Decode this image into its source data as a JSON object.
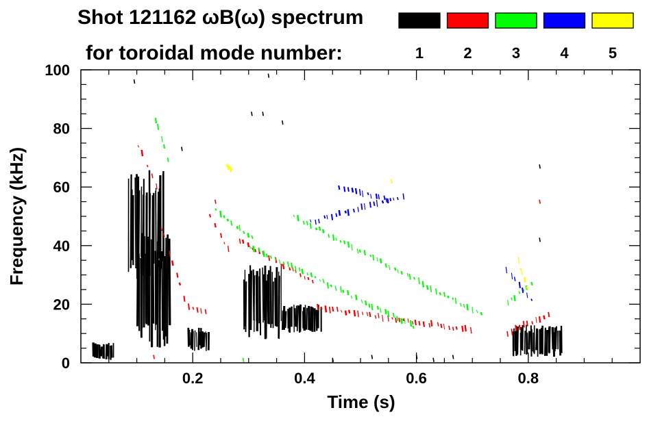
{
  "chart_data": {
    "type": "heatmap",
    "title_line1": "Shot 121162 ωB(ω) spectrum",
    "title_line2": "for toroidal mode number:",
    "xlabel": "Time (s)",
    "ylabel": "Frequency (kHz)",
    "xlim": [
      0.0,
      1.0
    ],
    "ylim": [
      0,
      100
    ],
    "xticks": [
      0.2,
      0.4,
      0.6,
      0.8
    ],
    "xtick_labels": [
      "0.2",
      "0.4",
      "0.6",
      "0.8"
    ],
    "yticks": [
      0,
      20,
      40,
      60,
      80,
      100
    ],
    "ytick_labels": [
      "0",
      "20",
      "40",
      "60",
      "80",
      "100"
    ],
    "legend": [
      {
        "label": "1",
        "color": "#000000"
      },
      {
        "label": "2",
        "color": "#ff0000"
      },
      {
        "label": "3",
        "color": "#00ff00"
      },
      {
        "label": "4",
        "color": "#0000ff"
      },
      {
        "label": "5",
        "color": "#ffff00"
      }
    ],
    "series": [
      {
        "name": "n=1",
        "color": "#000000",
        "regions": [
          {
            "t": [
              0.02,
              0.06
            ],
            "f": [
              1,
              7
            ]
          },
          {
            "t": [
              0.085,
              0.15
            ],
            "f": [
              28,
              66
            ]
          },
          {
            "t": [
              0.1,
              0.16
            ],
            "f": [
              5,
              45
            ]
          },
          {
            "t": [
              0.19,
              0.23
            ],
            "f": [
              4,
              12
            ]
          },
          {
            "t": [
              0.29,
              0.36
            ],
            "f": [
              8,
              34
            ]
          },
          {
            "t": [
              0.36,
              0.43
            ],
            "f": [
              10,
              20
            ]
          },
          {
            "t": [
              0.77,
              0.86
            ],
            "f": [
              2,
              13
            ]
          }
        ]
      },
      {
        "name": "n=2",
        "color": "#ff0000",
        "tracks": [
          {
            "t": [
              0.1,
              0.14
            ],
            "f": [
              75,
              58
            ]
          },
          {
            "t": [
              0.14,
              0.19
            ],
            "f": [
              48,
              19
            ]
          },
          {
            "t": [
              0.19,
              0.23
            ],
            "f": [
              19,
              17
            ]
          },
          {
            "t": [
              0.23,
              0.27
            ],
            "f": [
              50,
              36
            ]
          },
          {
            "t": [
              0.28,
              0.42
            ],
            "f": [
              42,
              27
            ]
          },
          {
            "t": [
              0.42,
              0.7
            ],
            "f": [
              19,
              11
            ]
          },
          {
            "t": [
              0.76,
              0.84
            ],
            "f": [
              10,
              17
            ]
          }
        ]
      },
      {
        "name": "n=3",
        "color": "#00ff00",
        "tracks": [
          {
            "t": [
              0.13,
              0.16
            ],
            "f": [
              85,
              66
            ]
          },
          {
            "t": [
              0.24,
              0.31
            ],
            "f": [
              52,
              42
            ]
          },
          {
            "t": [
              0.3,
              0.6
            ],
            "f": [
              40,
              12
            ]
          },
          {
            "t": [
              0.38,
              0.72
            ],
            "f": [
              50,
              16
            ]
          },
          {
            "t": [
              0.76,
              0.81
            ],
            "f": [
              20,
              28
            ]
          }
        ]
      },
      {
        "name": "n=4",
        "color": "#0000ff",
        "tracks": [
          {
            "t": [
              0.41,
              0.58
            ],
            "f": [
              48,
              57
            ]
          },
          {
            "t": [
              0.46,
              0.56
            ],
            "f": [
              60,
              55
            ]
          },
          {
            "t": [
              0.76,
              0.81
            ],
            "f": [
              32,
              20
            ]
          }
        ]
      },
      {
        "name": "n=5",
        "color": "#ffff00",
        "tracks": [
          {
            "t": [
              0.26,
              0.27
            ],
            "f": [
              67,
              66
            ]
          },
          {
            "t": [
              0.78,
              0.8
            ],
            "f": [
              36,
              24
            ]
          }
        ]
      }
    ]
  }
}
